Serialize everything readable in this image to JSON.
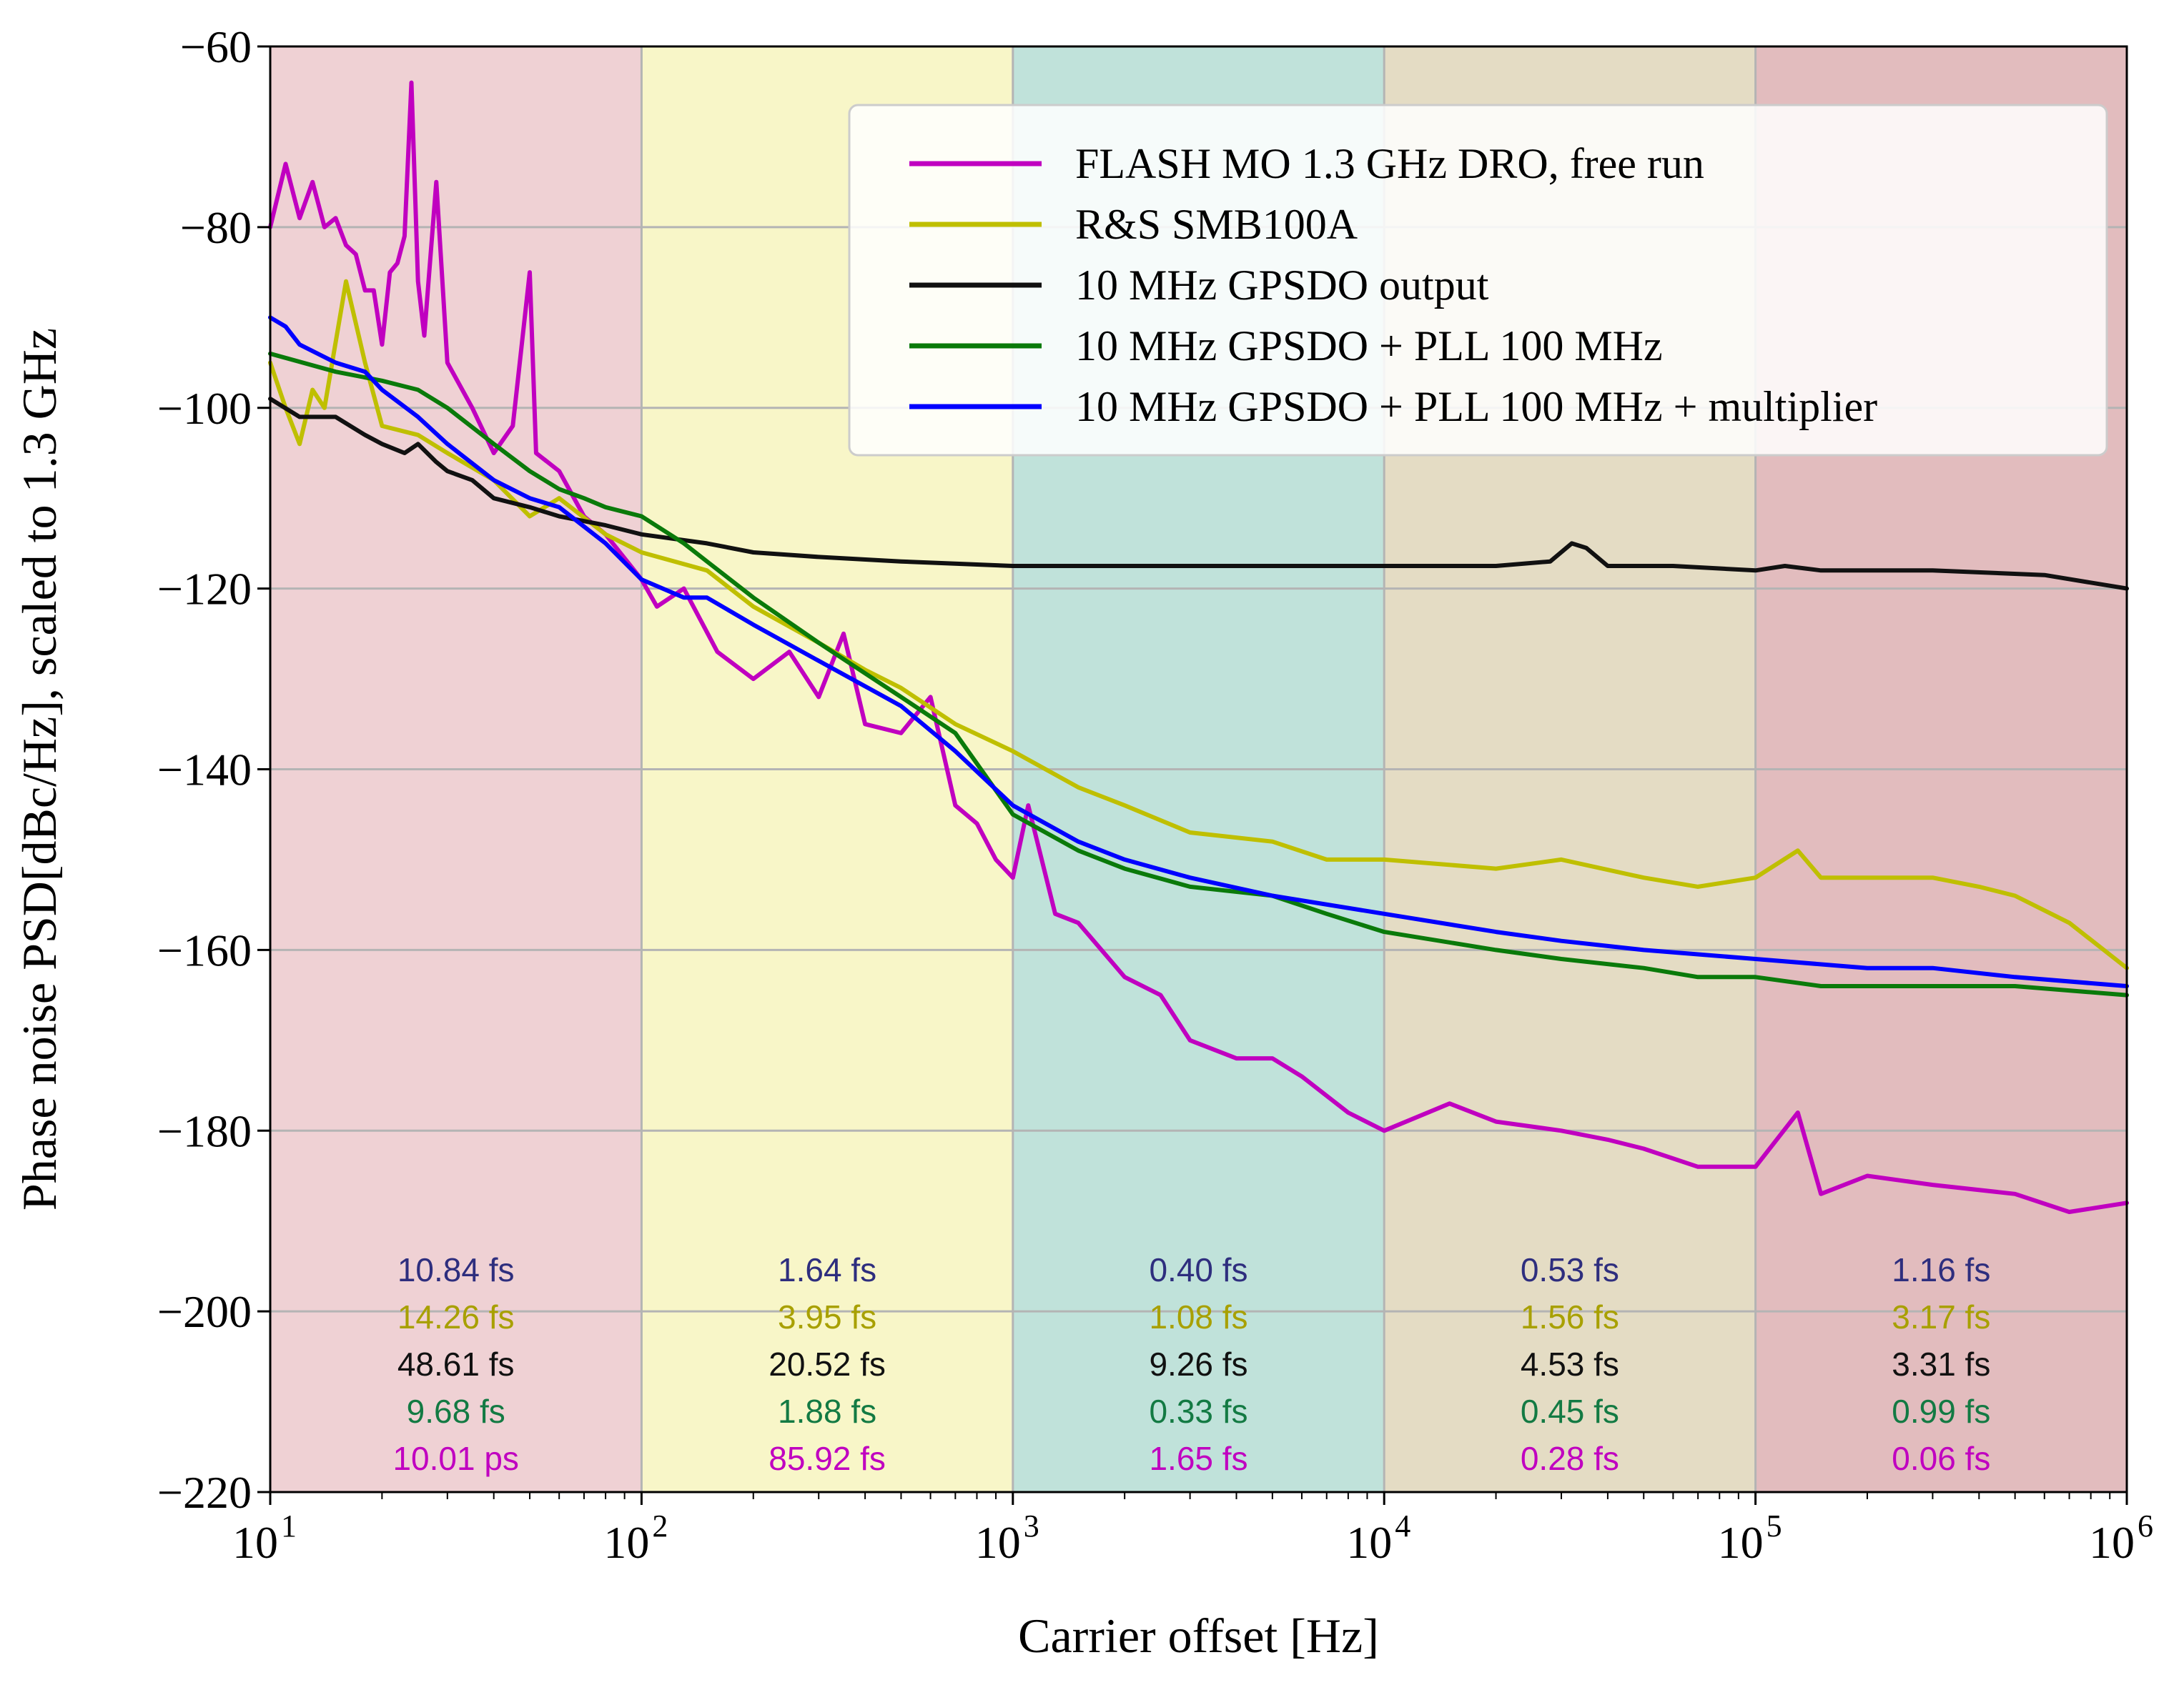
{
  "chart_data": {
    "type": "line",
    "title": "",
    "xlabel": "Carrier offset [Hz]",
    "ylabel": "Phase noise PSD[dBc/Hz], scaled to 1.3 GHz",
    "xscale": "log",
    "xlim": [
      10,
      1000000
    ],
    "ylim": [
      -220,
      -60
    ],
    "grid": true,
    "legend_position": "top-right",
    "x_ticks": [
      {
        "value": 10,
        "base": "10",
        "exp": "1"
      },
      {
        "value": 100,
        "base": "10",
        "exp": "2"
      },
      {
        "value": 1000,
        "base": "10",
        "exp": "3"
      },
      {
        "value": 10000,
        "base": "10",
        "exp": "4"
      },
      {
        "value": 100000,
        "base": "10",
        "exp": "5"
      },
      {
        "value": 1000000,
        "base": "10",
        "exp": "6"
      }
    ],
    "y_ticks": [
      {
        "value": -60,
        "label": "−60"
      },
      {
        "value": -80,
        "label": "−80"
      },
      {
        "value": -100,
        "label": "−100"
      },
      {
        "value": -120,
        "label": "−120"
      },
      {
        "value": -140,
        "label": "−140"
      },
      {
        "value": -160,
        "label": "−160"
      },
      {
        "value": -180,
        "label": "−180"
      },
      {
        "value": -200,
        "label": "−200"
      },
      {
        "value": -220,
        "label": "−220"
      }
    ],
    "bands": [
      {
        "from": 10,
        "to": 100,
        "color": "#efd1d4"
      },
      {
        "from": 100,
        "to": 1000,
        "color": "#f8f6c8"
      },
      {
        "from": 1000,
        "to": 10000,
        "color": "#c0e2da"
      },
      {
        "from": 10000,
        "to": 100000,
        "color": "#e4dcc4"
      },
      {
        "from": 100000,
        "to": 1000000,
        "color": "#e2bcbe"
      }
    ],
    "series": [
      {
        "name": "FLASH MO 1.3 GHz DRO, free run",
        "color": "#c000c0",
        "points": [
          [
            10,
            -80
          ],
          [
            11,
            -73
          ],
          [
            12,
            -79
          ],
          [
            13,
            -75
          ],
          [
            14,
            -80
          ],
          [
            15,
            -79
          ],
          [
            16,
            -82
          ],
          [
            17,
            -83
          ],
          [
            18,
            -87
          ],
          [
            19,
            -87
          ],
          [
            20,
            -93
          ],
          [
            21,
            -85
          ],
          [
            22,
            -84
          ],
          [
            23,
            -81
          ],
          [
            24,
            -64
          ],
          [
            25,
            -86
          ],
          [
            26,
            -92
          ],
          [
            28,
            -75
          ],
          [
            30,
            -95
          ],
          [
            35,
            -100
          ],
          [
            40,
            -105
          ],
          [
            45,
            -102
          ],
          [
            50,
            -85
          ],
          [
            52,
            -105
          ],
          [
            60,
            -107
          ],
          [
            70,
            -112
          ],
          [
            80,
            -114
          ],
          [
            100,
            -119
          ],
          [
            110,
            -122
          ],
          [
            130,
            -120
          ],
          [
            160,
            -127
          ],
          [
            200,
            -130
          ],
          [
            250,
            -127
          ],
          [
            300,
            -132
          ],
          [
            350,
            -125
          ],
          [
            400,
            -135
          ],
          [
            500,
            -136
          ],
          [
            600,
            -132
          ],
          [
            700,
            -144
          ],
          [
            800,
            -146
          ],
          [
            900,
            -150
          ],
          [
            1000,
            -152
          ],
          [
            1100,
            -144
          ],
          [
            1300,
            -156
          ],
          [
            1500,
            -157
          ],
          [
            2000,
            -163
          ],
          [
            2500,
            -165
          ],
          [
            3000,
            -170
          ],
          [
            4000,
            -172
          ],
          [
            5000,
            -172
          ],
          [
            6000,
            -174
          ],
          [
            8000,
            -178
          ],
          [
            10000,
            -180
          ],
          [
            15000,
            -177
          ],
          [
            20000,
            -179
          ],
          [
            30000,
            -180
          ],
          [
            40000,
            -181
          ],
          [
            50000,
            -182
          ],
          [
            70000,
            -184
          ],
          [
            100000,
            -184
          ],
          [
            130000,
            -178
          ],
          [
            150000,
            -187
          ],
          [
            200000,
            -185
          ],
          [
            300000,
            -186
          ],
          [
            500000,
            -187
          ],
          [
            700000,
            -189
          ],
          [
            1000000,
            -188
          ]
        ]
      },
      {
        "name": "R&S SMB100A",
        "color": "#bfbf00",
        "points": [
          [
            10,
            -95
          ],
          [
            11,
            -100
          ],
          [
            12,
            -104
          ],
          [
            13,
            -98
          ],
          [
            14,
            -100
          ],
          [
            16,
            -86
          ],
          [
            18,
            -95
          ],
          [
            20,
            -102
          ],
          [
            25,
            -103
          ],
          [
            30,
            -105
          ],
          [
            40,
            -108
          ],
          [
            50,
            -112
          ],
          [
            60,
            -110
          ],
          [
            80,
            -114
          ],
          [
            100,
            -116
          ],
          [
            150,
            -118
          ],
          [
            200,
            -122
          ],
          [
            300,
            -126
          ],
          [
            400,
            -129
          ],
          [
            500,
            -131
          ],
          [
            700,
            -135
          ],
          [
            1000,
            -138
          ],
          [
            1500,
            -142
          ],
          [
            2000,
            -144
          ],
          [
            3000,
            -147
          ],
          [
            5000,
            -148
          ],
          [
            7000,
            -150
          ],
          [
            10000,
            -150
          ],
          [
            20000,
            -151
          ],
          [
            30000,
            -150
          ],
          [
            50000,
            -152
          ],
          [
            70000,
            -153
          ],
          [
            100000,
            -152
          ],
          [
            130000,
            -149
          ],
          [
            150000,
            -152
          ],
          [
            200000,
            -152
          ],
          [
            300000,
            -152
          ],
          [
            400000,
            -153
          ],
          [
            500000,
            -154
          ],
          [
            700000,
            -157
          ],
          [
            1000000,
            -162
          ]
        ]
      },
      {
        "name": "10 MHz GPSDO output",
        "color": "#111111",
        "points": [
          [
            10,
            -99
          ],
          [
            12,
            -101
          ],
          [
            15,
            -101
          ],
          [
            18,
            -103
          ],
          [
            20,
            -104
          ],
          [
            23,
            -105
          ],
          [
            25,
            -104
          ],
          [
            28,
            -106
          ],
          [
            30,
            -107
          ],
          [
            35,
            -108
          ],
          [
            40,
            -110
          ],
          [
            50,
            -111
          ],
          [
            60,
            -112
          ],
          [
            80,
            -113
          ],
          [
            100,
            -114
          ],
          [
            150,
            -115
          ],
          [
            200,
            -116
          ],
          [
            300,
            -116.5
          ],
          [
            500,
            -117
          ],
          [
            1000,
            -117.5
          ],
          [
            2000,
            -117.5
          ],
          [
            5000,
            -117.5
          ],
          [
            10000,
            -117.5
          ],
          [
            20000,
            -117.5
          ],
          [
            28000,
            -117
          ],
          [
            32000,
            -115
          ],
          [
            35000,
            -115.5
          ],
          [
            40000,
            -117.5
          ],
          [
            60000,
            -117.5
          ],
          [
            100000,
            -118
          ],
          [
            120000,
            -117.5
          ],
          [
            150000,
            -118
          ],
          [
            300000,
            -118
          ],
          [
            600000,
            -118.5
          ],
          [
            1000000,
            -120
          ]
        ]
      },
      {
        "name": "10 MHz GPSDO + PLL 100 MHz",
        "color": "#0a7a0a",
        "points": [
          [
            10,
            -94
          ],
          [
            15,
            -96
          ],
          [
            20,
            -97
          ],
          [
            25,
            -98
          ],
          [
            30,
            -100
          ],
          [
            40,
            -104
          ],
          [
            50,
            -107
          ],
          [
            60,
            -109
          ],
          [
            70,
            -110
          ],
          [
            80,
            -111
          ],
          [
            100,
            -112
          ],
          [
            130,
            -115
          ],
          [
            150,
            -117
          ],
          [
            200,
            -121
          ],
          [
            300,
            -126
          ],
          [
            500,
            -132
          ],
          [
            700,
            -136
          ],
          [
            1000,
            -145
          ],
          [
            1500,
            -149
          ],
          [
            2000,
            -151
          ],
          [
            3000,
            -153
          ],
          [
            5000,
            -154
          ],
          [
            7000,
            -156
          ],
          [
            10000,
            -158
          ],
          [
            20000,
            -160
          ],
          [
            30000,
            -161
          ],
          [
            50000,
            -162
          ],
          [
            70000,
            -163
          ],
          [
            100000,
            -163
          ],
          [
            150000,
            -164
          ],
          [
            200000,
            -164
          ],
          [
            300000,
            -164
          ],
          [
            500000,
            -164
          ],
          [
            1000000,
            -165
          ]
        ]
      },
      {
        "name": "10 MHz GPSDO + PLL 100 MHz + multiplier",
        "color": "#0000ff",
        "points": [
          [
            10,
            -90
          ],
          [
            11,
            -91
          ],
          [
            12,
            -93
          ],
          [
            15,
            -95
          ],
          [
            18,
            -96
          ],
          [
            20,
            -98
          ],
          [
            25,
            -101
          ],
          [
            30,
            -104
          ],
          [
            40,
            -108
          ],
          [
            50,
            -110
          ],
          [
            60,
            -111
          ],
          [
            80,
            -115
          ],
          [
            100,
            -119
          ],
          [
            130,
            -121
          ],
          [
            150,
            -121
          ],
          [
            200,
            -124
          ],
          [
            300,
            -128
          ],
          [
            500,
            -133
          ],
          [
            700,
            -138
          ],
          [
            1000,
            -144
          ],
          [
            1500,
            -148
          ],
          [
            2000,
            -150
          ],
          [
            3000,
            -152
          ],
          [
            5000,
            -154
          ],
          [
            10000,
            -156
          ],
          [
            20000,
            -158
          ],
          [
            30000,
            -159
          ],
          [
            50000,
            -160
          ],
          [
            100000,
            -161
          ],
          [
            200000,
            -162
          ],
          [
            300000,
            -162
          ],
          [
            500000,
            -163
          ],
          [
            1000000,
            -164
          ]
        ]
      }
    ],
    "annotations": [
      {
        "band": 0,
        "values": [
          "10.84 fs",
          "14.26 fs",
          "48.61 fs",
          "9.68 fs",
          "10.01 ps"
        ]
      },
      {
        "band": 1,
        "values": [
          "1.64 fs",
          "3.95 fs",
          "20.52 fs",
          "1.88 fs",
          "85.92 fs"
        ]
      },
      {
        "band": 2,
        "values": [
          "0.40 fs",
          "1.08 fs",
          "9.26 fs",
          "0.33 fs",
          "1.65 fs"
        ]
      },
      {
        "band": 3,
        "values": [
          "0.53 fs",
          "1.56 fs",
          "4.53 fs",
          "0.45 fs",
          "0.28 fs"
        ]
      },
      {
        "band": 4,
        "values": [
          "1.16 fs",
          "3.17 fs",
          "3.31 fs",
          "0.99 fs",
          "0.06 fs"
        ]
      }
    ],
    "annotation_colors": [
      "#2e2e7e",
      "#a8a000",
      "#111111",
      "#137a43",
      "#c000c0"
    ]
  }
}
